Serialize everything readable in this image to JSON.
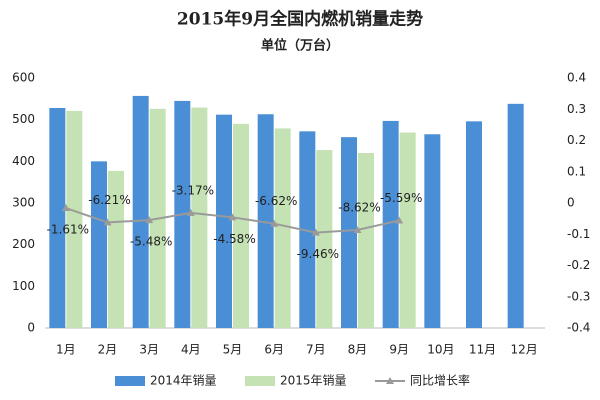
{
  "chart_data": {
    "type": "bar",
    "title": "2015年9月全国内燃机销量走势",
    "subtitle": "单位（万台）",
    "categories": [
      "1月",
      "2月",
      "3月",
      "4月",
      "5月",
      "6月",
      "7月",
      "8月",
      "9月",
      "10月",
      "11月",
      "12月"
    ],
    "series": [
      {
        "name": "2014年销量",
        "color": "#4a8fd6",
        "type": "bar",
        "values": [
          528,
          400,
          557,
          545,
          512,
          513,
          472,
          458,
          497,
          465,
          496,
          538
        ]
      },
      {
        "name": "2015年销量",
        "color": "#c4e2b3",
        "type": "bar",
        "values": [
          521,
          377,
          526,
          529,
          490,
          479,
          427,
          420,
          469,
          null,
          null,
          null
        ]
      },
      {
        "name": "同比增长率",
        "color": "#9a9a9a",
        "type": "line",
        "axis": "y2",
        "values": [
          -0.0161,
          -0.0621,
          -0.0548,
          -0.0317,
          -0.0458,
          -0.0662,
          -0.0946,
          -0.0862,
          -0.0559,
          null,
          null,
          null
        ],
        "value_labels": [
          "-1.61%",
          "-6.21%",
          "-5.48%",
          "-3.17%",
          "-4.58%",
          "-6.62%",
          "-9.46%",
          "-8.62%",
          "-5.59%",
          null,
          null,
          null
        ]
      }
    ],
    "ylim": [
      0,
      600
    ],
    "yticks": [
      0,
      100,
      200,
      300,
      400,
      500,
      600
    ],
    "y2lim": [
      -0.4,
      0.4
    ],
    "y2ticks": [
      -0.4,
      -0.3,
      -0.2,
      -0.1,
      0,
      0.1,
      0.2,
      0.3,
      0.4
    ],
    "grid": false,
    "legend": "bottom"
  }
}
